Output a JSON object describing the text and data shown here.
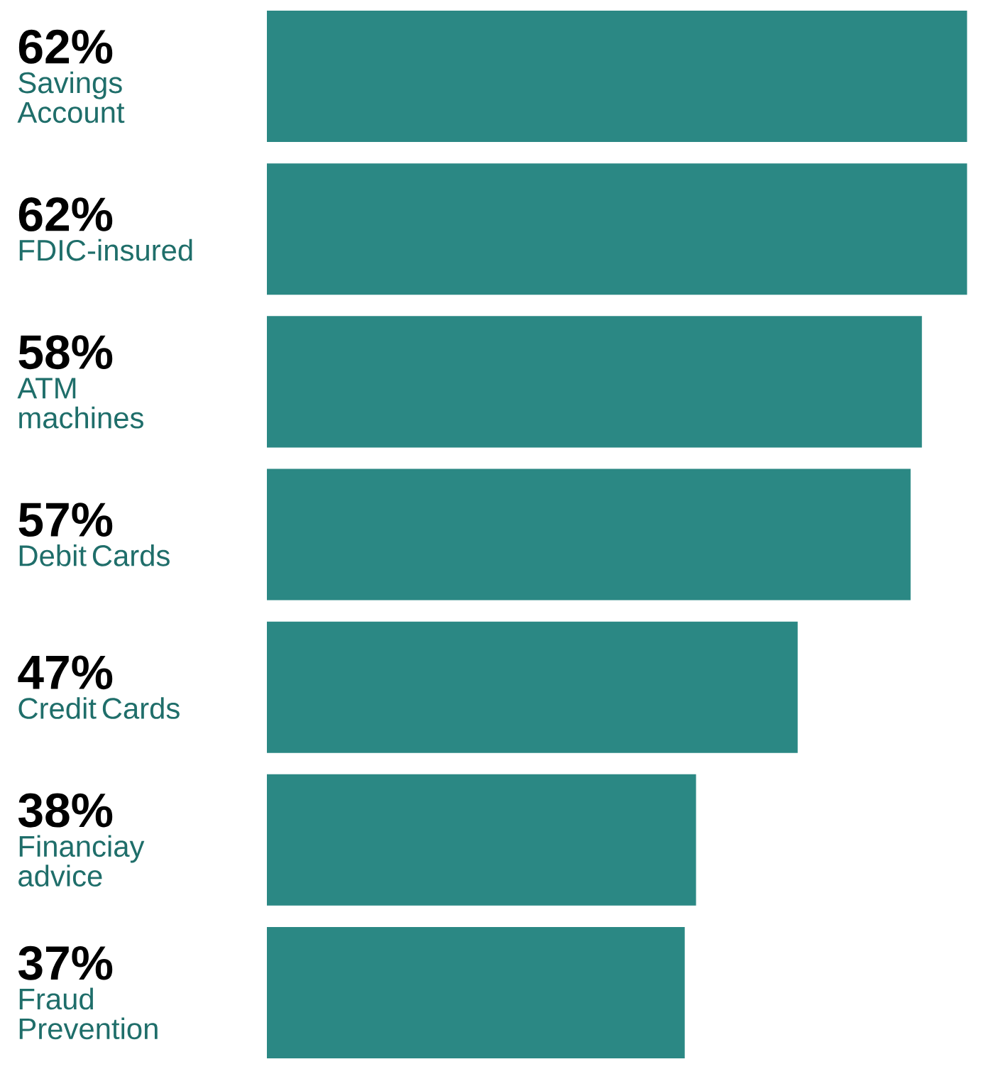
{
  "chart_data": {
    "type": "bar",
    "orientation": "horizontal",
    "categories": [
      "Savings Account",
      "FDIC-insured",
      "ATM machines",
      "Debit Cards",
      "Credit Cards",
      "Financiay advice",
      "Fraud Prevention"
    ],
    "values": [
      62,
      62,
      58,
      57,
      47,
      38,
      37
    ],
    "value_labels": [
      "62%",
      "62%",
      "58%",
      "57%",
      "47%",
      "38%",
      "37%"
    ],
    "color": "#2b8884"
  }
}
